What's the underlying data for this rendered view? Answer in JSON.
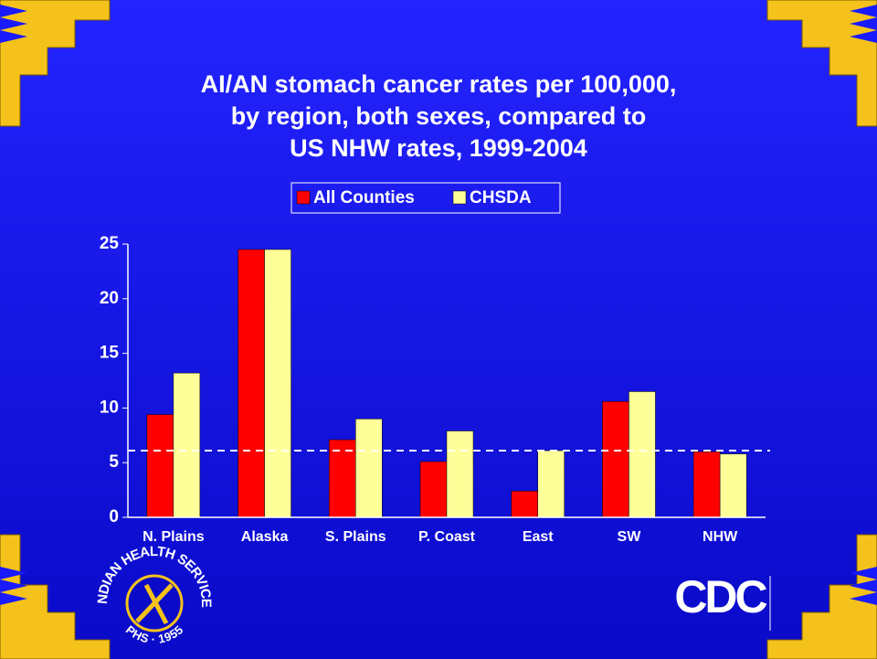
{
  "chart_data": {
    "type": "bar",
    "title": [
      "AI/AN stomach cancer rates per 100,000,",
      "by region, both sexes, compared to",
      "US NHW rates, 1999-2004"
    ],
    "categories": [
      "N. Plains",
      "Alaska",
      "S. Plains",
      "P. Coast",
      "East",
      "SW",
      "NHW"
    ],
    "series": [
      {
        "name": "All Counties",
        "color": "#ff0000",
        "values": [
          9.4,
          24.5,
          7.1,
          5.1,
          2.4,
          10.6,
          6.0
        ]
      },
      {
        "name": "CHSDA",
        "color": "#ffff99",
        "values": [
          13.2,
          24.5,
          9.0,
          7.9,
          6.1,
          11.5,
          5.8
        ]
      }
    ],
    "reference_line": 6.1,
    "ylim": [
      0,
      25
    ],
    "yticks": [
      0,
      5,
      10,
      15,
      20,
      25
    ],
    "grid": false,
    "legend": "top"
  },
  "logos": {
    "ihs": "INDIAN HEALTH SERVICE",
    "phs": "PHS · 1955",
    "cdc": "CDC"
  }
}
